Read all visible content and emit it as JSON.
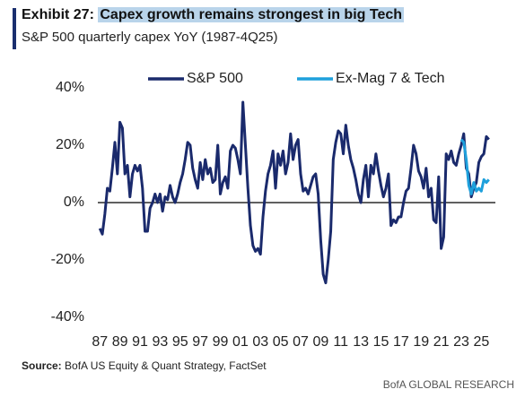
{
  "label": "Exhibit 27:",
  "source_label": "Source:",
  "source": "BofA US Equity & Quant Strategy, FactSet",
  "brand": "BofA GLOBAL RESEARCH",
  "chart_data": {
    "type": "line",
    "title": "Capex growth remains strongest in big Tech",
    "subtitle": "S&P 500 quarterly capex YoY (1987-4Q25)",
    "x": [
      1987,
      1987.25,
      1987.5,
      1987.75,
      1988,
      1988.25,
      1988.5,
      1988.75,
      1989,
      1989.25,
      1989.5,
      1989.75,
      1990,
      1990.25,
      1990.5,
      1990.75,
      1991,
      1991.25,
      1991.5,
      1991.75,
      1992,
      1992.25,
      1992.5,
      1992.75,
      1993,
      1993.25,
      1993.5,
      1993.75,
      1994,
      1994.25,
      1994.5,
      1994.75,
      1995,
      1995.25,
      1995.5,
      1995.75,
      1996,
      1996.25,
      1996.5,
      1996.75,
      1997,
      1997.25,
      1997.5,
      1997.75,
      1998,
      1998.25,
      1998.5,
      1998.75,
      1999,
      1999.25,
      1999.5,
      1999.75,
      2000,
      2000.25,
      2000.5,
      2000.75,
      2001,
      2001.25,
      2001.5,
      2001.75,
      2002,
      2002.25,
      2002.5,
      2002.75,
      2003,
      2003.25,
      2003.5,
      2003.75,
      2004,
      2004.25,
      2004.5,
      2004.75,
      2005,
      2005.25,
      2005.5,
      2005.75,
      2006,
      2006.25,
      2006.5,
      2006.75,
      2007,
      2007.25,
      2007.5,
      2007.75,
      2008,
      2008.25,
      2008.5,
      2008.75,
      2009,
      2009.25,
      2009.5,
      2009.75,
      2010,
      2010.25,
      2010.5,
      2010.75,
      2011,
      2011.25,
      2011.5,
      2011.75,
      2012,
      2012.25,
      2012.5,
      2012.75,
      2013,
      2013.25,
      2013.5,
      2013.75,
      2014,
      2014.25,
      2014.5,
      2014.75,
      2015,
      2015.25,
      2015.5,
      2015.75,
      2016,
      2016.25,
      2016.5,
      2016.75,
      2017,
      2017.25,
      2017.5,
      2017.75,
      2018,
      2018.25,
      2018.5,
      2018.75,
      2019,
      2019.25,
      2019.5,
      2019.75,
      2020,
      2020.25,
      2020.5,
      2020.75,
      2021,
      2021.25,
      2021.5,
      2021.75,
      2022,
      2022.25,
      2022.5,
      2022.75,
      2023,
      2023.25,
      2023.5,
      2023.75,
      2024,
      2024.25,
      2024.5,
      2024.75,
      2025,
      2025.25,
      2025.5,
      2025.75
    ],
    "series": [
      {
        "name": "S&P 500",
        "color": "#1a2a6c",
        "values": [
          -9,
          -11,
          -4,
          5,
          4,
          12,
          21,
          10,
          28,
          26,
          10,
          13,
          2,
          10,
          13,
          11,
          13,
          5,
          -10,
          -10,
          -2,
          0,
          3,
          0,
          3,
          -3,
          2,
          1,
          6,
          2,
          0,
          3,
          7,
          10,
          15,
          21,
          20,
          12,
          8,
          5,
          14,
          8,
          15,
          10,
          12,
          7,
          8,
          20,
          3,
          7,
          9,
          5,
          18,
          20,
          19,
          15,
          10,
          35,
          20,
          5,
          -8,
          -15,
          -17,
          -16,
          -18,
          -5,
          4,
          10,
          13,
          18,
          5,
          17,
          13,
          18,
          10,
          14,
          24,
          15,
          20,
          22,
          10,
          4,
          5,
          3,
          6,
          9,
          10,
          3,
          -13,
          -25,
          -28,
          -20,
          -10,
          15,
          21,
          25,
          24,
          17,
          27,
          20,
          15,
          12,
          8,
          3,
          0,
          8,
          13,
          2,
          13,
          10,
          17,
          11,
          6,
          2,
          5,
          10,
          -8,
          -6,
          -7,
          -5,
          -5,
          0,
          4,
          5,
          12,
          20,
          17,
          11,
          9,
          5,
          12,
          2,
          5,
          -6,
          -7,
          9,
          -16,
          -12,
          17,
          15,
          18,
          14,
          13,
          17,
          20,
          24,
          12,
          10,
          2,
          5,
          7,
          14,
          16,
          17,
          23,
          22
        ]
      },
      {
        "name": "Ex-Mag 7 & Tech",
        "color": "#1ea0dc",
        "values": [
          null,
          null,
          null,
          null,
          null,
          null,
          null,
          null,
          null,
          null,
          null,
          null,
          null,
          null,
          null,
          null,
          null,
          null,
          null,
          null,
          null,
          null,
          null,
          null,
          null,
          null,
          null,
          null,
          null,
          null,
          null,
          null,
          null,
          null,
          null,
          null,
          null,
          null,
          null,
          null,
          null,
          null,
          null,
          null,
          null,
          null,
          null,
          null,
          null,
          null,
          null,
          null,
          null,
          null,
          null,
          null,
          null,
          null,
          null,
          null,
          null,
          null,
          null,
          null,
          null,
          null,
          null,
          null,
          null,
          null,
          null,
          null,
          null,
          null,
          null,
          null,
          null,
          null,
          null,
          null,
          null,
          null,
          null,
          null,
          null,
          null,
          null,
          null,
          null,
          null,
          null,
          null,
          null,
          null,
          null,
          null,
          null,
          null,
          null,
          null,
          null,
          null,
          null,
          null,
          null,
          null,
          null,
          null,
          null,
          null,
          null,
          null,
          null,
          null,
          null,
          null,
          null,
          null,
          null,
          null,
          null,
          null,
          null,
          null,
          null,
          null,
          null,
          null,
          null,
          null,
          null,
          null,
          null,
          null,
          null,
          null,
          null,
          null,
          null,
          null,
          null,
          null,
          null,
          null,
          22,
          21,
          15,
          6,
          3,
          7,
          4,
          5,
          4,
          8,
          7,
          8
        ]
      }
    ],
    "xlim": [
      1986.8,
      2026.4
    ],
    "xticks": [
      {
        "value": 1987,
        "label": "87"
      },
      {
        "value": 1989,
        "label": "89"
      },
      {
        "value": 1991,
        "label": "91"
      },
      {
        "value": 1993,
        "label": "93"
      },
      {
        "value": 1995,
        "label": "95"
      },
      {
        "value": 1997,
        "label": "97"
      },
      {
        "value": 1999,
        "label": "99"
      },
      {
        "value": 2001,
        "label": "01"
      },
      {
        "value": 2003,
        "label": "03"
      },
      {
        "value": 2005,
        "label": "05"
      },
      {
        "value": 2007,
        "label": "07"
      },
      {
        "value": 2009,
        "label": "09"
      },
      {
        "value": 2011,
        "label": "11"
      },
      {
        "value": 2013,
        "label": "13"
      },
      {
        "value": 2015,
        "label": "15"
      },
      {
        "value": 2017,
        "label": "17"
      },
      {
        "value": 2019,
        "label": "19"
      },
      {
        "value": 2021,
        "label": "21"
      },
      {
        "value": 2023,
        "label": "23"
      },
      {
        "value": 2025,
        "label": "25"
      }
    ],
    "ylim": [
      -40,
      40
    ],
    "yticks": [
      {
        "value": -40,
        "label": "-40%"
      },
      {
        "value": -20,
        "label": "-20%"
      },
      {
        "value": 0,
        "label": "0%"
      },
      {
        "value": 20,
        "label": "20%"
      },
      {
        "value": 40,
        "label": "40%"
      }
    ],
    "grid": false,
    "zero_line": true,
    "legend": "top"
  }
}
